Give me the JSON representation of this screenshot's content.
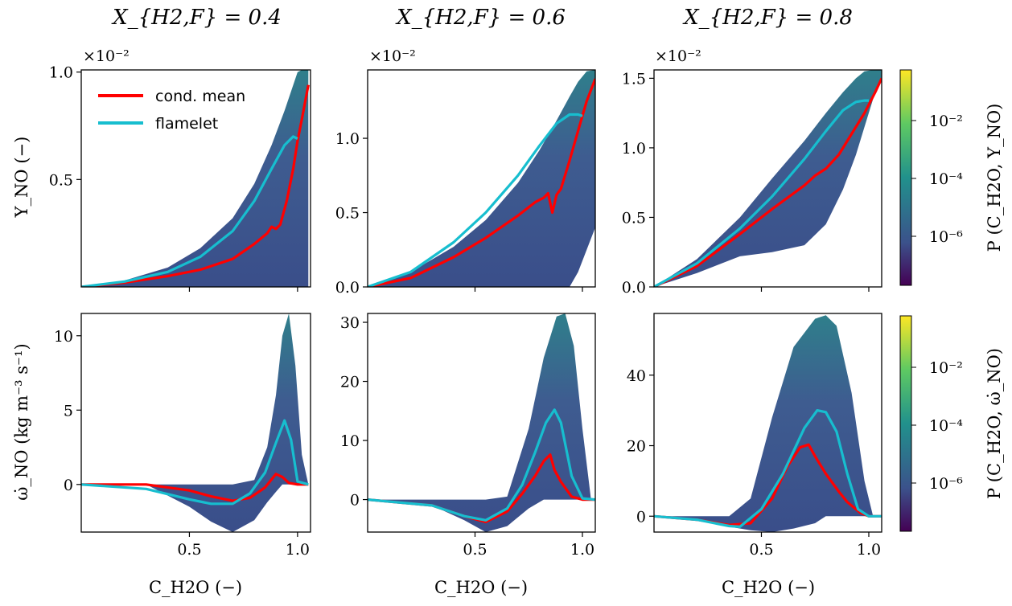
{
  "column_titles": [
    "X_{H2,F} = 0.4",
    "X_{H2,F} = 0.6",
    "X_{H2,F} = 0.8"
  ],
  "row_ylabels": [
    "Y_NO (−)",
    "ω̇_NO (kg m⁻³ s⁻¹)"
  ],
  "xlabel": "C_H2O (−)",
  "multiplier_label": "×10⁻²",
  "legend": {
    "cond_mean": "cond. mean",
    "flamelet": "flamelet"
  },
  "colorbars": [
    {
      "label": "P (C_H2O, Y_NO)",
      "ticks": [
        "10⁻²",
        "10⁻⁴",
        "10⁻⁶"
      ]
    },
    {
      "label": "P (C_H2O, ω̇_NO)",
      "ticks": [
        "10⁻²",
        "10⁻⁴",
        "10⁻⁶"
      ]
    }
  ],
  "colors": {
    "cond_mean": "#ff0000",
    "flamelet": "#17becf",
    "viridis_dark": "#440154",
    "viridis_mid": "#3b528b",
    "viridis_teal": "#21918c",
    "viridis_yellow": "#fde725"
  },
  "chart_data": [
    {
      "type": "scatter",
      "title": "X_{H2,F} = 0.4",
      "xlabel": "",
      "ylabel": "Y_NO (−)",
      "xlim": [
        0,
        1.06
      ],
      "ylim": [
        0,
        1.01
      ],
      "y_multiplier": "×10⁻²",
      "xticks": [
        {
          "v": 0.5,
          "label": ""
        },
        {
          "v": 1.0,
          "label": ""
        }
      ],
      "yticks": [
        {
          "v": 0.5,
          "label": "0.5"
        },
        {
          "v": 1.0,
          "label": "1.0"
        }
      ],
      "envelope": {
        "x": [
          0,
          0.2,
          0.4,
          0.55,
          0.7,
          0.8,
          0.88,
          0.94,
          0.98,
          1.0,
          1.02,
          1.05
        ],
        "upper": [
          0,
          0.03,
          0.09,
          0.18,
          0.32,
          0.48,
          0.66,
          0.82,
          0.94,
          1.0,
          1.01,
          1.01
        ],
        "lower": [
          0,
          0,
          0,
          0,
          0,
          0,
          0,
          0,
          0,
          0,
          0,
          0
        ]
      },
      "series": [
        {
          "name": "cond. mean",
          "x": [
            0,
            0.2,
            0.4,
            0.55,
            0.7,
            0.8,
            0.86,
            0.88,
            0.9,
            0.92,
            0.95,
            0.98,
            1.0,
            1.02,
            1.05
          ],
          "y": [
            0,
            0.02,
            0.05,
            0.08,
            0.13,
            0.2,
            0.25,
            0.28,
            0.27,
            0.29,
            0.4,
            0.55,
            0.68,
            0.78,
            0.94
          ]
        },
        {
          "name": "flamelet",
          "x": [
            0,
            0.2,
            0.4,
            0.55,
            0.7,
            0.8,
            0.88,
            0.94,
            0.98,
            1.0
          ],
          "y": [
            0,
            0.025,
            0.07,
            0.14,
            0.26,
            0.4,
            0.55,
            0.66,
            0.7,
            0.69
          ]
        }
      ]
    },
    {
      "type": "scatter",
      "title": "X_{H2,F} = 0.6",
      "xlabel": "",
      "ylabel": "",
      "xlim": [
        0,
        1.06
      ],
      "ylim": [
        0,
        1.46
      ],
      "y_multiplier": "×10⁻²",
      "xticks": [
        {
          "v": 0.5,
          "label": ""
        },
        {
          "v": 1.0,
          "label": ""
        }
      ],
      "yticks": [
        {
          "v": 0.0,
          "label": "0.0"
        },
        {
          "v": 0.5,
          "label": "0.5"
        },
        {
          "v": 1.0,
          "label": "1.0"
        }
      ],
      "envelope": {
        "x": [
          0,
          0.2,
          0.4,
          0.55,
          0.7,
          0.8,
          0.88,
          0.94,
          0.98,
          1.02,
          1.06
        ],
        "upper": [
          0,
          0.1,
          0.27,
          0.45,
          0.7,
          0.92,
          1.12,
          1.28,
          1.38,
          1.45,
          1.46
        ],
        "lower": [
          0,
          0,
          0,
          0,
          0,
          0,
          0,
          0,
          0.1,
          0.25,
          0.4
        ]
      },
      "series": [
        {
          "name": "cond. mean",
          "x": [
            0,
            0.2,
            0.4,
            0.55,
            0.7,
            0.78,
            0.82,
            0.84,
            0.86,
            0.88,
            0.9,
            0.94,
            0.98,
            1.02,
            1.06
          ],
          "y": [
            0,
            0.06,
            0.2,
            0.33,
            0.48,
            0.57,
            0.6,
            0.63,
            0.5,
            0.62,
            0.66,
            0.85,
            1.05,
            1.25,
            1.4
          ]
        },
        {
          "name": "flamelet",
          "x": [
            0,
            0.2,
            0.4,
            0.55,
            0.7,
            0.8,
            0.88,
            0.94,
            0.98,
            1.0
          ],
          "y": [
            0,
            0.1,
            0.3,
            0.5,
            0.75,
            0.95,
            1.1,
            1.16,
            1.16,
            1.15
          ]
        }
      ]
    },
    {
      "type": "scatter",
      "title": "X_{H2,F} = 0.8",
      "xlabel": "",
      "ylabel": "",
      "xlim": [
        0,
        1.06
      ],
      "ylim": [
        0,
        1.56
      ],
      "y_multiplier": "×10⁻²",
      "xticks": [
        {
          "v": 0.5,
          "label": ""
        },
        {
          "v": 1.0,
          "label": ""
        }
      ],
      "yticks": [
        {
          "v": 0.0,
          "label": "0.0"
        },
        {
          "v": 0.5,
          "label": "0.5"
        },
        {
          "v": 1.0,
          "label": "1.0"
        },
        {
          "v": 1.5,
          "label": "1.5"
        }
      ],
      "envelope": {
        "x": [
          0,
          0.2,
          0.4,
          0.55,
          0.7,
          0.8,
          0.88,
          0.94,
          0.98,
          1.02,
          1.06
        ],
        "upper": [
          0,
          0.2,
          0.5,
          0.78,
          1.05,
          1.25,
          1.4,
          1.5,
          1.55,
          1.56,
          1.56
        ],
        "lower": [
          0,
          0.1,
          0.22,
          0.25,
          0.3,
          0.45,
          0.7,
          0.95,
          1.15,
          1.35,
          1.5
        ]
      },
      "series": [
        {
          "name": "cond. mean",
          "x": [
            0,
            0.2,
            0.4,
            0.55,
            0.7,
            0.75,
            0.8,
            0.86,
            0.92,
            0.98,
            1.03,
            1.06
          ],
          "y": [
            0,
            0.15,
            0.38,
            0.56,
            0.73,
            0.8,
            0.85,
            0.95,
            1.1,
            1.25,
            1.4,
            1.5
          ]
        },
        {
          "name": "flamelet",
          "x": [
            0,
            0.2,
            0.4,
            0.55,
            0.7,
            0.8,
            0.88,
            0.94,
            0.98,
            1.0
          ],
          "y": [
            0,
            0.17,
            0.42,
            0.65,
            0.92,
            1.12,
            1.27,
            1.33,
            1.34,
            1.34
          ]
        }
      ]
    },
    {
      "type": "scatter",
      "title": "",
      "xlabel": "C_H2O (−)",
      "ylabel": "ω̇_NO (kg m⁻³ s⁻¹)",
      "xlim": [
        0,
        1.06
      ],
      "ylim": [
        -3.2,
        11.5
      ],
      "xticks": [
        {
          "v": 0.5,
          "label": "0.5"
        },
        {
          "v": 1.0,
          "label": "1.0"
        }
      ],
      "yticks": [
        {
          "v": 0,
          "label": "0"
        },
        {
          "v": 5,
          "label": "5"
        },
        {
          "v": 10,
          "label": "10"
        }
      ],
      "envelope": {
        "x": [
          0,
          0.3,
          0.5,
          0.6,
          0.7,
          0.8,
          0.86,
          0.9,
          0.93,
          0.96,
          0.99,
          1.02,
          1.05
        ],
        "upper": [
          0,
          0,
          0,
          0,
          0,
          0.3,
          2.5,
          6,
          10,
          11.5,
          8,
          2,
          0
        ],
        "lower": [
          0,
          0,
          -1.5,
          -2.5,
          -3.2,
          -2.4,
          -1.2,
          -0.5,
          0,
          0,
          0,
          0,
          0
        ]
      },
      "series": [
        {
          "name": "cond. mean",
          "x": [
            0,
            0.3,
            0.5,
            0.6,
            0.7,
            0.78,
            0.85,
            0.9,
            0.93,
            0.96,
            1.0,
            1.05
          ],
          "y": [
            0,
            0,
            -0.4,
            -0.8,
            -1.1,
            -0.9,
            -0.2,
            0.7,
            0.5,
            0.1,
            0,
            0
          ]
        },
        {
          "name": "flamelet",
          "x": [
            0,
            0.3,
            0.5,
            0.6,
            0.7,
            0.78,
            0.85,
            0.9,
            0.94,
            0.97,
            1.0,
            1.05
          ],
          "y": [
            0,
            -0.3,
            -1.0,
            -1.3,
            -1.3,
            -0.6,
            0.8,
            2.8,
            4.3,
            3.0,
            0.2,
            0
          ]
        }
      ]
    },
    {
      "type": "scatter",
      "title": "",
      "xlabel": "C_H2O (−)",
      "ylabel": "",
      "xlim": [
        0,
        1.06
      ],
      "ylim": [
        -5.5,
        31.5
      ],
      "xticks": [
        {
          "v": 0.5,
          "label": "0.5"
        },
        {
          "v": 1.0,
          "label": "1.0"
        }
      ],
      "yticks": [
        {
          "v": 0,
          "label": "0"
        },
        {
          "v": 10,
          "label": "10"
        },
        {
          "v": 20,
          "label": "20"
        },
        {
          "v": 30,
          "label": "30"
        }
      ],
      "envelope": {
        "x": [
          0,
          0.3,
          0.45,
          0.55,
          0.65,
          0.75,
          0.82,
          0.88,
          0.92,
          0.96,
          1.0,
          1.04
        ],
        "upper": [
          0,
          0,
          0,
          0,
          0.5,
          12,
          24,
          31,
          31.5,
          26,
          12,
          0
        ],
        "lower": [
          0,
          -1,
          -3.5,
          -5.5,
          -4.5,
          -1.5,
          0,
          0,
          0,
          0,
          0,
          0
        ]
      },
      "series": [
        {
          "name": "cond. mean",
          "x": [
            0,
            0.3,
            0.45,
            0.55,
            0.65,
            0.72,
            0.78,
            0.82,
            0.85,
            0.87,
            0.9,
            0.95,
            1.0,
            1.06
          ],
          "y": [
            0,
            -1,
            -2.8,
            -3.8,
            -2,
            1,
            4,
            6.5,
            7.6,
            5,
            3,
            0.5,
            0,
            0
          ]
        },
        {
          "name": "flamelet",
          "x": [
            0,
            0.3,
            0.45,
            0.55,
            0.65,
            0.72,
            0.78,
            0.83,
            0.87,
            0.9,
            0.95,
            1.0,
            1.06
          ],
          "y": [
            0,
            -1,
            -2.8,
            -3.5,
            -1.5,
            2.5,
            8,
            13,
            15.2,
            13,
            4,
            0.2,
            0
          ]
        }
      ]
    },
    {
      "type": "scatter",
      "title": "",
      "xlabel": "C_H2O (−)",
      "ylabel": "",
      "xlim": [
        0,
        1.06
      ],
      "ylim": [
        -4.5,
        57.5
      ],
      "xticks": [
        {
          "v": 0.5,
          "label": "0.5"
        },
        {
          "v": 1.0,
          "label": "1.0"
        }
      ],
      "yticks": [
        {
          "v": 0,
          "label": "0"
        },
        {
          "v": 20,
          "label": "20"
        },
        {
          "v": 40,
          "label": "40"
        }
      ],
      "envelope": {
        "x": [
          0,
          0.2,
          0.35,
          0.45,
          0.55,
          0.65,
          0.75,
          0.8,
          0.85,
          0.92,
          0.98,
          1.02,
          1.06
        ],
        "upper": [
          0,
          0,
          0,
          5,
          28,
          48,
          56,
          57,
          54,
          35,
          10,
          0,
          0
        ],
        "lower": [
          0,
          -1,
          -3,
          -4,
          -4.5,
          -3.5,
          -2,
          0,
          0,
          0,
          0,
          0,
          0
        ]
      },
      "series": [
        {
          "name": "cond. mean",
          "x": [
            0,
            0.2,
            0.35,
            0.45,
            0.55,
            0.62,
            0.68,
            0.72,
            0.75,
            0.8,
            0.86,
            0.9,
            0.96,
            1.0,
            1.06
          ],
          "y": [
            0,
            -1,
            -2.5,
            -2,
            5,
            14,
            19.5,
            20.3,
            17,
            12,
            7,
            4,
            1,
            0,
            0
          ]
        },
        {
          "name": "flamelet",
          "x": [
            0,
            0.2,
            0.35,
            0.4,
            0.5,
            0.6,
            0.7,
            0.76,
            0.8,
            0.85,
            0.9,
            0.95,
            1.0,
            1.06
          ],
          "y": [
            0,
            -1,
            -2.8,
            -3,
            2,
            12,
            25,
            30,
            29.5,
            24,
            12,
            2,
            0,
            0
          ]
        }
      ]
    }
  ]
}
